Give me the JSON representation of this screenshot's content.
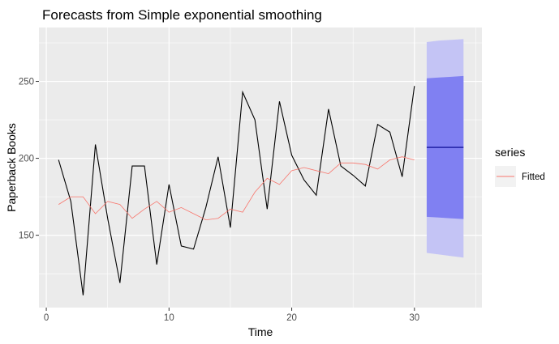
{
  "chart_data": {
    "type": "line",
    "title": "Forecasts from Simple exponential smoothing",
    "xlabel": "Time",
    "ylabel": "Paperback Books",
    "xlim": [
      -0.6,
      35.5
    ],
    "ylim": [
      103,
      285
    ],
    "x_ticks": [
      0,
      10,
      20,
      30
    ],
    "y_ticks": [
      150,
      200,
      250
    ],
    "grid": true,
    "legend": {
      "title": "series",
      "placement": "right",
      "entries": [
        {
          "name": "Fitted",
          "color": "#F8766D"
        }
      ]
    },
    "series": [
      {
        "key": "observed",
        "color": "#000000",
        "x": [
          1,
          2,
          3,
          4,
          5,
          6,
          7,
          8,
          9,
          10,
          11,
          12,
          13,
          14,
          15,
          16,
          17,
          18,
          19,
          20,
          21,
          22,
          23,
          24,
          25,
          26,
          27,
          28,
          29,
          30
        ],
        "y": [
          199,
          172,
          111,
          209,
          161,
          119,
          195,
          195,
          131,
          183,
          143,
          141,
          168,
          201,
          155,
          243,
          225,
          167,
          237,
          202,
          186,
          176,
          232,
          195,
          189,
          182,
          222,
          217,
          188,
          247
        ]
      },
      {
        "name": "Fitted",
        "key": "fitted",
        "color": "#F8766D",
        "x": [
          1,
          2,
          3,
          4,
          5,
          6,
          7,
          8,
          9,
          10,
          11,
          12,
          13,
          14,
          15,
          16,
          17,
          18,
          19,
          20,
          21,
          22,
          23,
          24,
          25,
          26,
          27,
          28,
          29,
          30
        ],
        "y": [
          170,
          175,
          175,
          164,
          172,
          170,
          161,
          167,
          172,
          165,
          168,
          164,
          160,
          161,
          167,
          165,
          178,
          187,
          183,
          192,
          194,
          192,
          190,
          197,
          197,
          196,
          193,
          199,
          201,
          199
        ]
      }
    ],
    "forecast": {
      "x": [
        31,
        32,
        33,
        34
      ],
      "mean": [
        207.1,
        207.1,
        207.1,
        207.1
      ],
      "lo80": [
        162,
        161.5,
        161,
        160.5
      ],
      "hi80": [
        252,
        252.5,
        253,
        253.5
      ],
      "lo95": [
        138.5,
        137.5,
        136.5,
        135.5
      ],
      "hi95": [
        275.5,
        276.5,
        277,
        277.5
      ],
      "mean_color": "#00008B",
      "band80_color": "#8080F2",
      "band95_color": "#C4C4F5"
    }
  }
}
